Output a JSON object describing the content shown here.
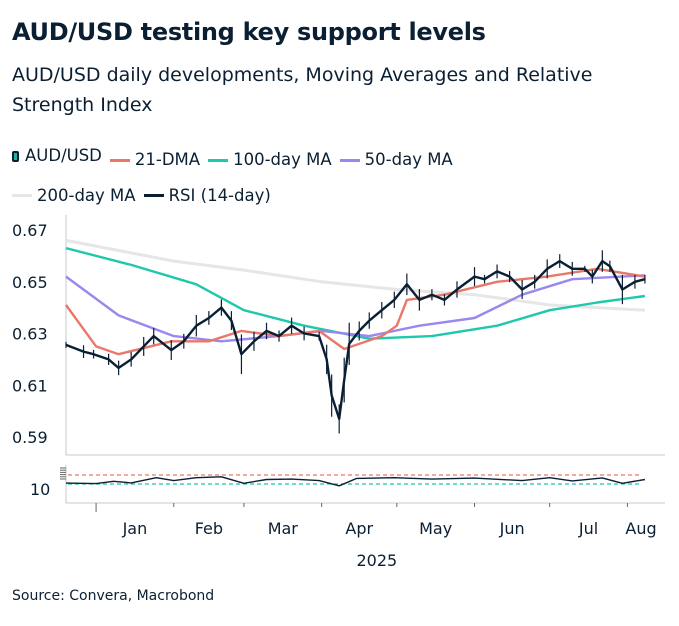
{
  "title": "AUD/USD testing key support levels",
  "subtitle": "AUD/USD daily developments, Moving Averages and Relative Strength Index",
  "source": "Source: Convera, Macrobond",
  "legend": [
    {
      "label": "AUD/USD",
      "color": "#16b8a0",
      "icon": "candlestick-icon"
    },
    {
      "label": "21-DMA",
      "color": "#e8786a"
    },
    {
      "label": "100-day MA",
      "color": "#1ec8aa"
    },
    {
      "label": "50-day MA",
      "color": "#9a88ee"
    },
    {
      "label": "200-day MA",
      "color": "#e6e6e6"
    },
    {
      "label": "RSI (14-day)",
      "color": "#0b1f33"
    }
  ],
  "chart_data": {
    "type": "line",
    "xlim": [
      "2024-12-20",
      "2025-08-16"
    ],
    "ylim": [
      0.585,
      0.675
    ],
    "y_ticks": [
      "0.67",
      "0.65",
      "0.63",
      "0.61",
      "0.59"
    ],
    "x_ticks": [
      "Jan",
      "Feb",
      "Mar",
      "Apr",
      "May",
      "Jun",
      "Jul",
      "Aug"
    ],
    "x_year": "2025",
    "rsi_tick": "10",
    "grid": false,
    "legend_position": "top",
    "series": [
      {
        "name": "AUD/USD",
        "color": "#0b1f33",
        "points": [
          [
            "2024-12-20",
            0.6256
          ],
          [
            "2024-12-27",
            0.623
          ],
          [
            "2024-12-31",
            0.622
          ],
          [
            "2025-01-06",
            0.62
          ],
          [
            "2025-01-10",
            0.6167
          ],
          [
            "2025-01-15",
            0.62
          ],
          [
            "2025-01-20",
            0.625
          ],
          [
            "2025-01-24",
            0.629
          ],
          [
            "2025-01-31",
            0.6236
          ],
          [
            "2025-02-05",
            0.627
          ],
          [
            "2025-02-10",
            0.633
          ],
          [
            "2025-02-15",
            0.636
          ],
          [
            "2025-02-20",
            0.64
          ],
          [
            "2025-02-24",
            0.635
          ],
          [
            "2025-02-28",
            0.622
          ],
          [
            "2025-03-05",
            0.627
          ],
          [
            "2025-03-10",
            0.631
          ],
          [
            "2025-03-15",
            0.629
          ],
          [
            "2025-03-20",
            0.633
          ],
          [
            "2025-03-25",
            0.63
          ],
          [
            "2025-03-31",
            0.629
          ],
          [
            "2025-04-03",
            0.62
          ],
          [
            "2025-04-05",
            0.606
          ],
          [
            "2025-04-08",
            0.597
          ],
          [
            "2025-04-10",
            0.612
          ],
          [
            "2025-04-12",
            0.626
          ],
          [
            "2025-04-16",
            0.631
          ],
          [
            "2025-04-20",
            0.635
          ],
          [
            "2025-04-25",
            0.639
          ],
          [
            "2025-04-30",
            0.643
          ],
          [
            "2025-05-05",
            0.649
          ],
          [
            "2025-05-10",
            0.643
          ],
          [
            "2025-05-15",
            0.645
          ],
          [
            "2025-05-20",
            0.643
          ],
          [
            "2025-05-25",
            0.647
          ],
          [
            "2025-06-01",
            0.652
          ],
          [
            "2025-06-05",
            0.651
          ],
          [
            "2025-06-10",
            0.654
          ],
          [
            "2025-06-15",
            0.652
          ],
          [
            "2025-06-20",
            0.647
          ],
          [
            "2025-06-25",
            0.65
          ],
          [
            "2025-06-30",
            0.655
          ],
          [
            "2025-07-05",
            0.658
          ],
          [
            "2025-07-10",
            0.655
          ],
          [
            "2025-07-15",
            0.655
          ],
          [
            "2025-07-18",
            0.652
          ],
          [
            "2025-07-22",
            0.658
          ],
          [
            "2025-07-25",
            0.656
          ],
          [
            "2025-07-30",
            0.647
          ],
          [
            "2025-08-04",
            0.65
          ],
          [
            "2025-08-08",
            0.651
          ]
        ]
      },
      {
        "name": "21-DMA",
        "color": "#e8786a",
        "points": [
          [
            "2024-12-20",
            0.641
          ],
          [
            "2025-01-01",
            0.625
          ],
          [
            "2025-01-10",
            0.622
          ],
          [
            "2025-01-31",
            0.627
          ],
          [
            "2025-02-15",
            0.627
          ],
          [
            "2025-02-28",
            0.631
          ],
          [
            "2025-03-15",
            0.629
          ],
          [
            "2025-03-31",
            0.631
          ],
          [
            "2025-04-10",
            0.624
          ],
          [
            "2025-04-25",
            0.629
          ],
          [
            "2025-05-01",
            0.633
          ],
          [
            "2025-05-05",
            0.643
          ],
          [
            "2025-05-20",
            0.645
          ],
          [
            "2025-06-10",
            0.65
          ],
          [
            "2025-06-30",
            0.652
          ],
          [
            "2025-07-20",
            0.655
          ],
          [
            "2025-08-08",
            0.652
          ]
        ]
      },
      {
        "name": "100-day MA",
        "color": "#1ec8aa",
        "points": [
          [
            "2024-12-20",
            0.663
          ],
          [
            "2025-01-15",
            0.6565
          ],
          [
            "2025-02-10",
            0.649
          ],
          [
            "2025-03-01",
            0.639
          ],
          [
            "2025-03-25",
            0.633
          ],
          [
            "2025-04-20",
            0.628
          ],
          [
            "2025-05-15",
            0.629
          ],
          [
            "2025-06-10",
            0.633
          ],
          [
            "2025-07-01",
            0.639
          ],
          [
            "2025-07-20",
            0.642
          ],
          [
            "2025-08-08",
            0.6445
          ]
        ]
      },
      {
        "name": "50-day MA",
        "color": "#9a88ee",
        "points": [
          [
            "2024-12-20",
            0.652
          ],
          [
            "2025-01-10",
            0.637
          ],
          [
            "2025-02-01",
            0.629
          ],
          [
            "2025-02-20",
            0.627
          ],
          [
            "2025-03-15",
            0.629
          ],
          [
            "2025-04-01",
            0.631
          ],
          [
            "2025-04-20",
            0.629
          ],
          [
            "2025-05-10",
            0.633
          ],
          [
            "2025-06-01",
            0.636
          ],
          [
            "2025-06-20",
            0.645
          ],
          [
            "2025-07-10",
            0.651
          ],
          [
            "2025-08-08",
            0.6525
          ]
        ]
      },
      {
        "name": "200-day MA",
        "color": "#e6e6e6",
        "points": [
          [
            "2024-12-20",
            0.666
          ],
          [
            "2025-02-01",
            0.658
          ],
          [
            "2025-03-01",
            0.6545
          ],
          [
            "2025-04-01",
            0.65
          ],
          [
            "2025-05-01",
            0.647
          ],
          [
            "2025-06-01",
            0.645
          ],
          [
            "2025-07-01",
            0.641
          ],
          [
            "2025-08-08",
            0.639
          ]
        ]
      },
      {
        "name": "RSI (14-day)",
        "color": "#0b1f33",
        "points": [
          [
            "2024-12-20",
            34
          ],
          [
            "2025-01-01",
            32
          ],
          [
            "2025-01-08",
            42
          ],
          [
            "2025-01-15",
            35
          ],
          [
            "2025-01-25",
            58
          ],
          [
            "2025-02-01",
            45
          ],
          [
            "2025-02-10",
            58
          ],
          [
            "2025-02-20",
            62
          ],
          [
            "2025-03-01",
            33
          ],
          [
            "2025-03-10",
            50
          ],
          [
            "2025-03-20",
            52
          ],
          [
            "2025-03-31",
            45
          ],
          [
            "2025-04-08",
            22
          ],
          [
            "2025-04-15",
            55
          ],
          [
            "2025-04-30",
            58
          ],
          [
            "2025-05-15",
            52
          ],
          [
            "2025-06-01",
            56
          ],
          [
            "2025-06-20",
            45
          ],
          [
            "2025-07-01",
            58
          ],
          [
            "2025-07-10",
            44
          ],
          [
            "2025-07-22",
            57
          ],
          [
            "2025-07-30",
            33
          ],
          [
            "2025-08-08",
            50
          ]
        ]
      }
    ],
    "rsi_levels": [
      {
        "value": 70,
        "color": "#e8786a"
      },
      {
        "value": 30,
        "color": "#1ec8aa"
      }
    ]
  }
}
